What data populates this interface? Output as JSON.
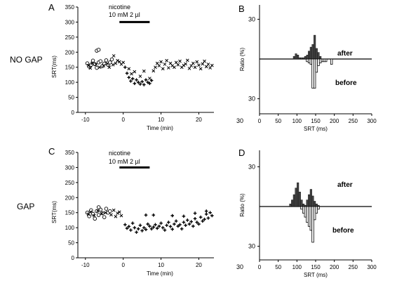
{
  "rows": [
    {
      "row_label": "NO GAP",
      "left_letter": "A",
      "right_letter": "B"
    },
    {
      "row_label": "GAP",
      "left_letter": "C",
      "right_letter": "D"
    }
  ],
  "drug_label": "nicotine",
  "dose_label": "10 mM  2 µl",
  "hist_labels": {
    "after": "after",
    "before": "before"
  },
  "chart_data": [
    {
      "type": "scatter",
      "panel": "A",
      "xlabel": "Time (min)",
      "ylabel": "SRT(ms)",
      "xlim": [
        -12,
        24
      ],
      "ylim": [
        0,
        350
      ],
      "xticks": [
        -10,
        0,
        10,
        20
      ],
      "yticks": [
        0,
        50,
        100,
        150,
        200,
        250,
        300,
        350
      ],
      "xtick_labels": [
        "-10",
        "0",
        "10",
        "20"
      ],
      "ytick_labels": [
        "0",
        "50",
        "100",
        "150",
        "200",
        "250",
        "300",
        "350"
      ],
      "annotation": {
        "drug": "nicotine",
        "dose": "10 mM  2 µl",
        "bar_x": [
          -1,
          7
        ],
        "bar_y": 300
      },
      "series": [
        {
          "marker": "circle-open",
          "x": [
            -9.5,
            -9,
            -8.5,
            -8,
            -7.5,
            -7,
            -6.5,
            -6,
            -5.5,
            -5,
            -4.5,
            -4,
            -3.5,
            -3,
            -7,
            -6.5
          ],
          "y": [
            163,
            152,
            158,
            172,
            160,
            148,
            166,
            170,
            154,
            162,
            173,
            158,
            166,
            176,
            205,
            208
          ]
        },
        {
          "marker": "x",
          "x": [
            -9.2,
            -8.7,
            -8.2,
            -7.2,
            -6.2,
            -5.2,
            -4.2,
            -3.7,
            -2.7,
            -2,
            -1.5,
            -1,
            -0.5,
            0,
            -2.5,
            1.5,
            2.2,
            3,
            4.5,
            5.5,
            7,
            8,
            8.5,
            9,
            9.5,
            10,
            10.5,
            11,
            11.5,
            12,
            12.5,
            13,
            13.5,
            14,
            14.5,
            15,
            15.5,
            16,
            16.5,
            17,
            17.5,
            18,
            18.5,
            19,
            19.5,
            20,
            20.5,
            21,
            21.5,
            22,
            22.5,
            23,
            23.5
          ],
          "y": [
            156,
            147,
            163,
            160,
            150,
            155,
            162,
            150,
            158,
            163,
            172,
            168,
            160,
            166,
            188,
            145,
            128,
            135,
            120,
            137,
            113,
            138,
            150,
            163,
            155,
            168,
            145,
            160,
            172,
            148,
            163,
            155,
            150,
            166,
            158,
            170,
            150,
            156,
            161,
            173,
            146,
            155,
            163,
            150,
            168,
            157,
            145,
            161,
            170,
            152,
            160,
            148,
            156
          ]
        },
        {
          "marker": "plus",
          "x": [
            0.5,
            1,
            1.5,
            2,
            2.5,
            3,
            3.5,
            4,
            4.5,
            5,
            5.5,
            6,
            6.5,
            7,
            7.5
          ],
          "y": [
            150,
            130,
            116,
            104,
            112,
            96,
            108,
            100,
            94,
            102,
            92,
            108,
            100,
            96,
            106
          ]
        }
      ]
    },
    {
      "type": "bar",
      "panel": "B",
      "xlabel": "SRT (ms)",
      "ylabel": "Ratio (%)",
      "xlim": [
        0,
        300
      ],
      "xticks": [
        0,
        50,
        100,
        150,
        200,
        250,
        300
      ],
      "xtick_labels": [
        "0",
        "50",
        "100",
        "150",
        "200",
        "250",
        "300"
      ],
      "yaxis_labels": {
        "top": "30",
        "bottom": "30",
        "left_corner": "30"
      },
      "ylim_after": [
        0,
        30
      ],
      "ylim_before": [
        0,
        30
      ],
      "bin_width": 5,
      "after": {
        "bins": [
          90,
          95,
          100,
          105,
          110,
          115,
          120,
          125,
          130,
          135,
          140,
          145,
          150,
          155,
          160
        ],
        "values": [
          2,
          4,
          3,
          1,
          1,
          1,
          2,
          3,
          6,
          9,
          11,
          18,
          8,
          5,
          2
        ]
      },
      "before": {
        "bins": [
          125,
          130,
          135,
          140,
          145,
          150,
          155,
          160,
          165,
          170,
          175,
          180,
          185,
          190,
          195
        ],
        "values": [
          2,
          3,
          4,
          22,
          22,
          10,
          5,
          3,
          2,
          2,
          2,
          0,
          0,
          4,
          0
        ]
      }
    },
    {
      "type": "scatter",
      "panel": "C",
      "xlabel": "Time (min)",
      "ylabel": "SRT(ms)",
      "xlim": [
        -12,
        24
      ],
      "ylim": [
        0,
        350
      ],
      "xticks": [
        -10,
        0,
        10,
        20
      ],
      "yticks": [
        0,
        50,
        100,
        150,
        200,
        250,
        300,
        350
      ],
      "xtick_labels": [
        "-10",
        "0",
        "10",
        "20"
      ],
      "ytick_labels": [
        "0",
        "50",
        "100",
        "150",
        "200",
        "250",
        "300",
        "350"
      ],
      "annotation": {
        "drug": "nicotine",
        "dose": "10 mM  2 µl",
        "bar_x": [
          -1,
          7
        ],
        "bar_y": 300
      },
      "series": [
        {
          "marker": "circle-open",
          "x": [
            -9.5,
            -9,
            -8.5,
            -8,
            -7.5,
            -7,
            -6.5,
            -6,
            -5.5,
            -5,
            -4.5,
            -4,
            -3.5,
            -6.5
          ],
          "y": [
            150,
            138,
            158,
            146,
            130,
            155,
            142,
            160,
            148,
            135,
            163,
            150,
            155,
            168
          ]
        },
        {
          "marker": "x",
          "x": [
            -9.2,
            -8.7,
            -7.7,
            -6.7,
            -5.7,
            -4.7,
            -3.2,
            -2.5,
            -2,
            -1.5,
            -1,
            -0.5
          ],
          "y": [
            145,
            152,
            140,
            156,
            147,
            150,
            143,
            158,
            137,
            148,
            152,
            140
          ]
        },
        {
          "marker": "plus",
          "x": [
            0.5,
            1,
            1.5,
            2,
            2.5,
            3,
            3.5,
            4,
            4.5,
            5,
            5.5,
            6,
            6.5,
            7,
            7.5,
            8,
            8.5,
            9,
            9.5,
            10,
            10.5,
            11,
            11.5,
            12,
            12.5,
            13,
            13.5,
            14,
            14.5,
            15,
            15.5,
            16,
            16.5,
            17,
            17.5,
            18,
            18.5,
            19,
            19.5,
            20,
            20.5,
            21,
            21.5,
            22,
            22.5,
            23,
            23.5,
            6,
            8,
            13,
            16,
            19,
            22
          ],
          "y": [
            110,
            98,
            104,
            92,
            115,
            100,
            85,
            96,
            108,
            90,
            100,
            94,
            112,
            105,
            96,
            102,
            110,
            98,
            105,
            115,
            100,
            92,
            108,
            118,
            104,
            95,
            112,
            122,
            105,
            110,
            96,
            118,
            108,
            125,
            112,
            120,
            105,
            130,
            118,
            112,
            135,
            122,
            128,
            145,
            132,
            150,
            140,
            142,
            142,
            140,
            138,
            148,
            155
          ]
        }
      ]
    },
    {
      "type": "bar",
      "panel": "D",
      "xlabel": "SRT (ms)",
      "ylabel": "Ratio (%)",
      "xlim": [
        0,
        300
      ],
      "xticks": [
        0,
        50,
        100,
        150,
        200,
        250,
        300
      ],
      "xtick_labels": [
        "0",
        "50",
        "100",
        "150",
        "200",
        "250",
        "300"
      ],
      "yaxis_labels": {
        "top": "30",
        "bottom": "30",
        "left_corner": "30"
      },
      "ylim_after": [
        0,
        30
      ],
      "ylim_before": [
        0,
        30
      ],
      "bin_width": 5,
      "after": {
        "bins": [
          80,
          85,
          90,
          95,
          100,
          105,
          110,
          115,
          120,
          125,
          130,
          135,
          140,
          145,
          150,
          155
        ],
        "values": [
          2,
          5,
          9,
          14,
          18,
          11,
          5,
          2,
          1,
          5,
          9,
          13,
          8,
          4,
          2,
          1
        ]
      },
      "before": {
        "bins": [
          110,
          115,
          120,
          125,
          130,
          135,
          140,
          145,
          150,
          155
        ],
        "values": [
          2,
          5,
          8,
          12,
          15,
          18,
          27,
          10,
          5,
          2
        ]
      }
    }
  ]
}
